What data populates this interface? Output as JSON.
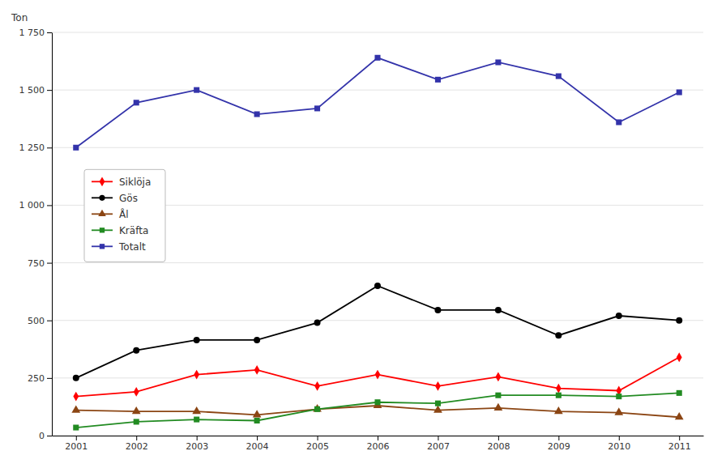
{
  "chart_data": {
    "type": "line",
    "y_label": "Ton",
    "x": [
      2001,
      2002,
      2003,
      2004,
      2005,
      2006,
      2007,
      2008,
      2009,
      2010,
      2011
    ],
    "series": [
      {
        "name": "Siklöja",
        "color": "#FF0000",
        "marker": "diamond",
        "values": [
          170,
          190,
          265,
          285,
          215,
          265,
          215,
          255,
          205,
          195,
          340
        ]
      },
      {
        "name": "Gös",
        "color": "#000000",
        "marker": "circle",
        "values": [
          250,
          370,
          415,
          415,
          490,
          650,
          545,
          545,
          435,
          520,
          500
        ]
      },
      {
        "name": "Ål",
        "color": "#8B4513",
        "marker": "triangle",
        "values": [
          110,
          105,
          105,
          90,
          115,
          130,
          110,
          120,
          105,
          100,
          80
        ]
      },
      {
        "name": "Kräfta",
        "color": "#228B22",
        "marker": "square",
        "values": [
          35,
          60,
          70,
          65,
          115,
          145,
          140,
          175,
          175,
          170,
          185
        ]
      },
      {
        "name": "Totalt",
        "color": "#3333AA",
        "marker": "square",
        "values": [
          1250,
          1445,
          1500,
          1395,
          1420,
          1640,
          1545,
          1620,
          1560,
          1360,
          1490
        ]
      }
    ],
    "xlim": [
      2000.6,
      2011.4
    ],
    "xticks": [
      2001,
      2002,
      2003,
      2004,
      2005,
      2006,
      2007,
      2008,
      2009,
      2010,
      2011
    ],
    "ylim": [
      0,
      1750
    ],
    "yticks": [
      0,
      250,
      500,
      750,
      {
        "value": 1000,
        "label": "1 000"
      },
      {
        "value": 1250,
        "label": "1 250"
      },
      {
        "value": 1500,
        "label": "1 500"
      },
      {
        "value": 1750,
        "label": "1 750"
      }
    ],
    "grid": true,
    "legend": "top-left"
  }
}
